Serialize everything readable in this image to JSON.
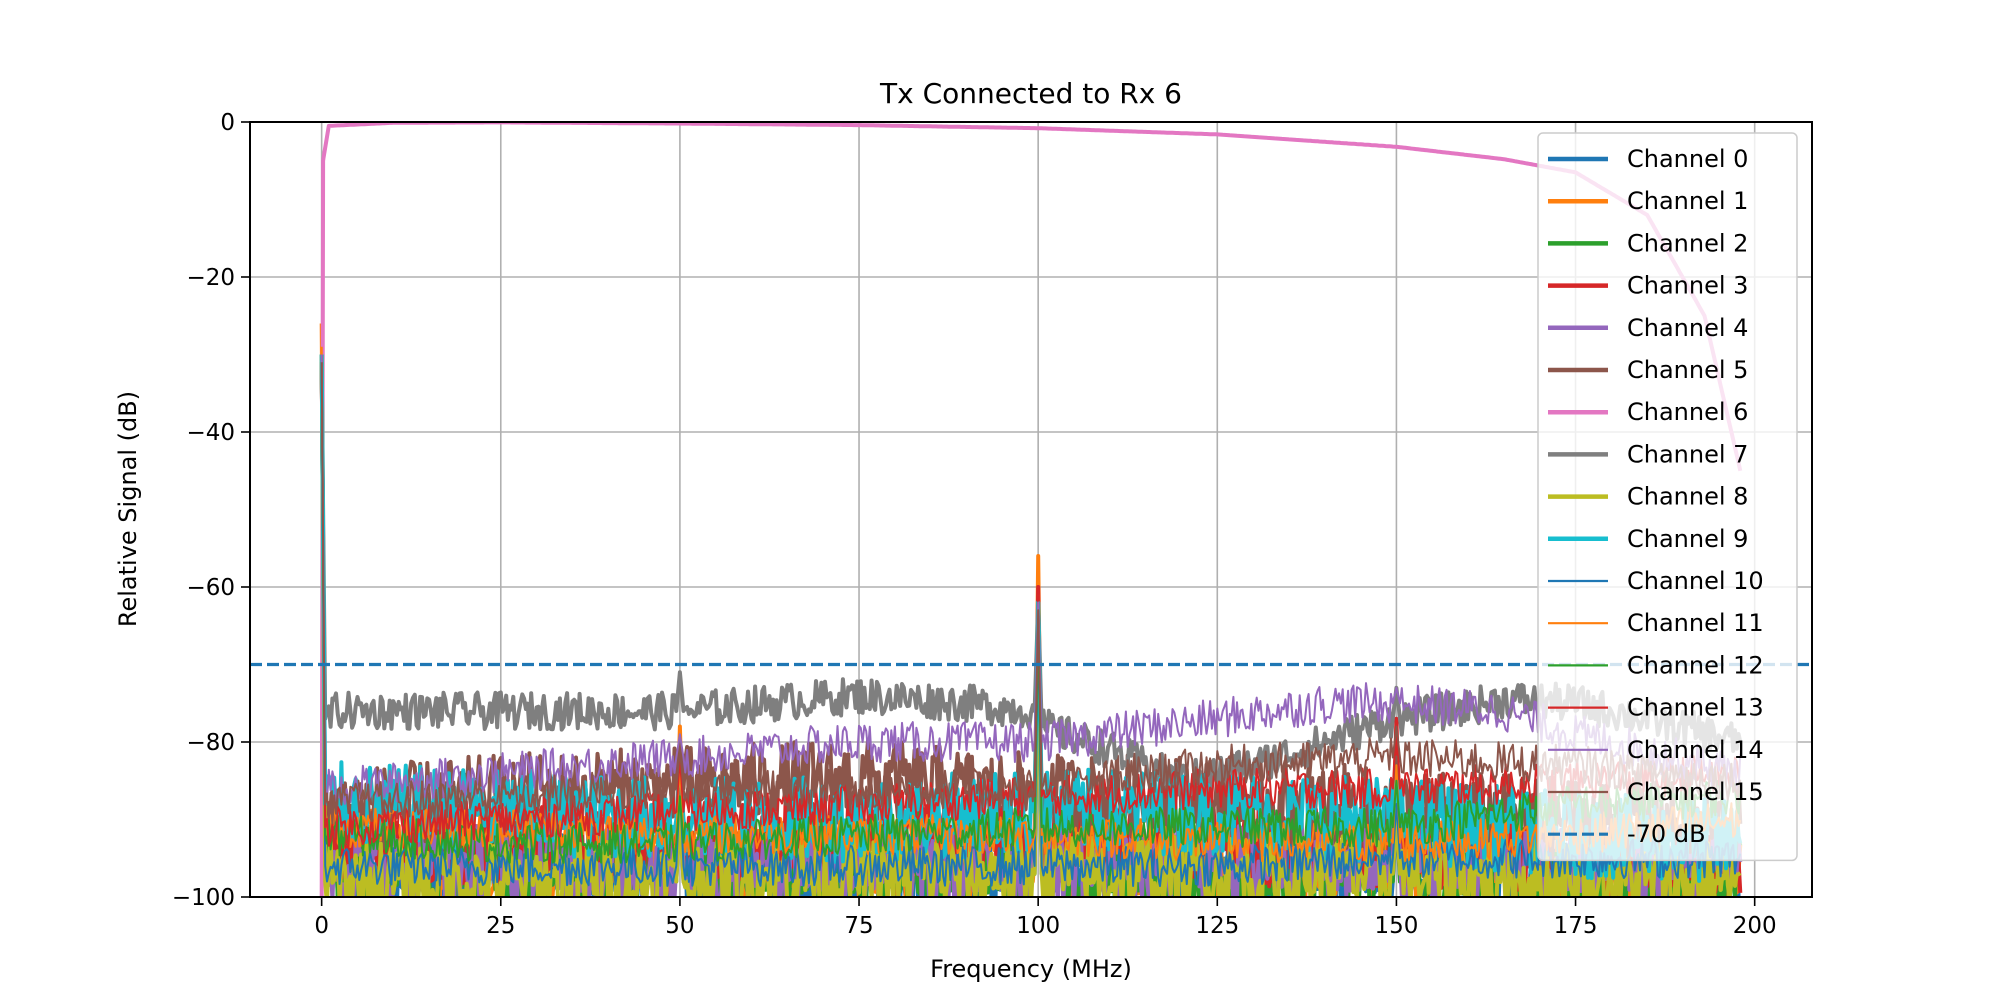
{
  "chart_data": {
    "type": "line",
    "title": "Tx Connected to Rx 6",
    "xlabel": "Frequency (MHz)",
    "ylabel": "Relative Signal (dB)",
    "xlim": [
      -10,
      208
    ],
    "ylim": [
      -100,
      0
    ],
    "xticks": [
      0,
      25,
      50,
      75,
      100,
      125,
      150,
      175,
      200
    ],
    "yticks": [
      0,
      -20,
      -40,
      -60,
      -80,
      -100
    ],
    "xtick_labels": [
      "0",
      "25",
      "50",
      "75",
      "100",
      "125",
      "150",
      "175",
      "200"
    ],
    "ytick_labels": [
      "0",
      "−20",
      "−40",
      "−60",
      "−80",
      "−100"
    ],
    "grid": true,
    "legend_position": "upper right",
    "reference_line": {
      "name": "-70 dB",
      "y": -70,
      "color": "#1f77b4",
      "style": "dashed"
    },
    "spur_frequencies": [
      0,
      50,
      100,
      150
    ],
    "series": [
      {
        "name": "Channel 0",
        "color": "#1f77b4",
        "width": "thick",
        "points": [
          [
            0,
            -30
          ],
          [
            0.5,
            -97
          ],
          [
            25,
            -97
          ],
          [
            49.5,
            -98
          ],
          [
            50,
            -88
          ],
          [
            50.5,
            -98
          ],
          [
            75,
            -97
          ],
          [
            99.5,
            -97
          ],
          [
            100,
            -62
          ],
          [
            100.5,
            -97
          ],
          [
            125,
            -98
          ],
          [
            149.5,
            -98
          ],
          [
            150,
            -90
          ],
          [
            150.5,
            -98
          ],
          [
            175,
            -98
          ],
          [
            198,
            -97
          ]
        ]
      },
      {
        "name": "Channel 1",
        "color": "#ff7f0e",
        "width": "thick",
        "points": [
          [
            0,
            -26
          ],
          [
            0.5,
            -94
          ],
          [
            25,
            -95
          ],
          [
            49.5,
            -95
          ],
          [
            50,
            -78
          ],
          [
            50.5,
            -95
          ],
          [
            75,
            -95
          ],
          [
            99.5,
            -95
          ],
          [
            100,
            -56
          ],
          [
            100.5,
            -95
          ],
          [
            125,
            -96
          ],
          [
            149.5,
            -96
          ],
          [
            150,
            -78
          ],
          [
            150.5,
            -96
          ],
          [
            175,
            -97
          ],
          [
            198,
            -96
          ]
        ]
      },
      {
        "name": "Channel 2",
        "color": "#2ca02c",
        "width": "thick",
        "points": [
          [
            0,
            -30
          ],
          [
            0.5,
            -96
          ],
          [
            25,
            -97
          ],
          [
            49.5,
            -97
          ],
          [
            50,
            -85
          ],
          [
            50.5,
            -97
          ],
          [
            75,
            -97
          ],
          [
            99.5,
            -97
          ],
          [
            100,
            -63
          ],
          [
            100.5,
            -97
          ],
          [
            125,
            -98
          ],
          [
            149.5,
            -98
          ],
          [
            150,
            -85
          ],
          [
            150.5,
            -98
          ],
          [
            175,
            -98
          ],
          [
            198,
            -98
          ]
        ]
      },
      {
        "name": "Channel 3",
        "color": "#d62728",
        "width": "thick",
        "points": [
          [
            0,
            -31
          ],
          [
            0.5,
            -93
          ],
          [
            25,
            -93
          ],
          [
            49.5,
            -93
          ],
          [
            50,
            -84
          ],
          [
            50.5,
            -93
          ],
          [
            75,
            -92
          ],
          [
            99.5,
            -92
          ],
          [
            100,
            -60
          ],
          [
            100.5,
            -92
          ],
          [
            125,
            -93
          ],
          [
            149.5,
            -94
          ],
          [
            150,
            -77
          ],
          [
            150.5,
            -94
          ],
          [
            175,
            -94
          ],
          [
            198,
            -95
          ]
        ]
      },
      {
        "name": "Channel 4",
        "color": "#9467bd",
        "width": "thick",
        "points": [
          [
            0,
            -30
          ],
          [
            0.5,
            -96
          ],
          [
            25,
            -96
          ],
          [
            49.5,
            -96
          ],
          [
            50,
            -80
          ],
          [
            50.5,
            -96
          ],
          [
            75,
            -96
          ],
          [
            99.5,
            -96
          ],
          [
            100,
            -62
          ],
          [
            100.5,
            -96
          ],
          [
            125,
            -96
          ],
          [
            149.5,
            -95
          ],
          [
            150,
            -84
          ],
          [
            150.5,
            -95
          ],
          [
            175,
            -96
          ],
          [
            198,
            -96
          ]
        ]
      },
      {
        "name": "Channel 5",
        "color": "#8c564b",
        "width": "thick",
        "points": [
          [
            0,
            -31
          ],
          [
            0.5,
            -89
          ],
          [
            25,
            -87
          ],
          [
            49.5,
            -86
          ],
          [
            50,
            -80
          ],
          [
            50.5,
            -86
          ],
          [
            75,
            -85
          ],
          [
            99.5,
            -87
          ],
          [
            100,
            -63
          ],
          [
            100.5,
            -87
          ],
          [
            125,
            -87
          ],
          [
            149.5,
            -89
          ],
          [
            150,
            -82
          ],
          [
            150.5,
            -89
          ],
          [
            175,
            -90
          ],
          [
            198,
            -91
          ]
        ]
      },
      {
        "name": "Channel 6",
        "color": "#e377c2",
        "width": "thick",
        "points": [
          [
            0,
            -100
          ],
          [
            0.2,
            -5
          ],
          [
            1,
            -0.5
          ],
          [
            10,
            -0.1
          ],
          [
            25,
            -0.05
          ],
          [
            50,
            -0.2
          ],
          [
            75,
            -0.4
          ],
          [
            100,
            -0.8
          ],
          [
            125,
            -1.6
          ],
          [
            150,
            -3.2
          ],
          [
            165,
            -4.8
          ],
          [
            175,
            -6.5
          ],
          [
            185,
            -12
          ],
          [
            193,
            -25
          ],
          [
            198,
            -45
          ]
        ]
      },
      {
        "name": "Channel 7",
        "color": "#7f7f7f",
        "width": "thick",
        "points": [
          [
            0,
            -31
          ],
          [
            0.5,
            -77
          ],
          [
            2,
            -76
          ],
          [
            25,
            -76
          ],
          [
            49.5,
            -76
          ],
          [
            50,
            -71
          ],
          [
            50.5,
            -76
          ],
          [
            62,
            -75
          ],
          [
            75,
            -74
          ],
          [
            90,
            -75
          ],
          [
            99.5,
            -76
          ],
          [
            100,
            -62
          ],
          [
            100.5,
            -78
          ],
          [
            110,
            -81
          ],
          [
            120,
            -85
          ],
          [
            130,
            -83
          ],
          [
            140,
            -80
          ],
          [
            149.5,
            -77
          ],
          [
            150,
            -73
          ],
          [
            150.5,
            -77
          ],
          [
            160,
            -75.5
          ],
          [
            165,
            -74.5
          ],
          [
            175,
            -75
          ],
          [
            185,
            -77
          ],
          [
            198,
            -80
          ]
        ]
      },
      {
        "name": "Channel 8",
        "color": "#bcbd22",
        "width": "thick",
        "points": [
          [
            0,
            -30
          ],
          [
            0.5,
            -98
          ],
          [
            25,
            -98
          ],
          [
            49.5,
            -98
          ],
          [
            50,
            -89
          ],
          [
            50.5,
            -98
          ],
          [
            75,
            -97
          ],
          [
            99.5,
            -97
          ],
          [
            100,
            -63
          ],
          [
            100.5,
            -97
          ],
          [
            125,
            -97
          ],
          [
            149.5,
            -97
          ],
          [
            150,
            -90
          ],
          [
            150.5,
            -97
          ],
          [
            175,
            -98
          ],
          [
            198,
            -98
          ]
        ]
      },
      {
        "name": "Channel 9",
        "color": "#17becf",
        "width": "thick",
        "points": [
          [
            0,
            -30
          ],
          [
            0.5,
            -88
          ],
          [
            25,
            -89
          ],
          [
            49.5,
            -90
          ],
          [
            50,
            -83
          ],
          [
            50.5,
            -90
          ],
          [
            75,
            -90
          ],
          [
            99.5,
            -89
          ],
          [
            100,
            -62
          ],
          [
            100.5,
            -89
          ],
          [
            125,
            -89
          ],
          [
            149.5,
            -90
          ],
          [
            150,
            -85
          ],
          [
            150.5,
            -90
          ],
          [
            175,
            -92
          ],
          [
            198,
            -93
          ]
        ]
      },
      {
        "name": "Channel 10",
        "color": "#1f77b4",
        "width": "thin",
        "points": [
          [
            0,
            -31
          ],
          [
            0.5,
            -96
          ],
          [
            25,
            -96
          ],
          [
            49.5,
            -96
          ],
          [
            50,
            -86
          ],
          [
            50.5,
            -96
          ],
          [
            75,
            -96
          ],
          [
            99.5,
            -96
          ],
          [
            100,
            -64
          ],
          [
            100.5,
            -96
          ],
          [
            125,
            -96
          ],
          [
            149.5,
            -95
          ],
          [
            150,
            -88
          ],
          [
            150.5,
            -95
          ],
          [
            175,
            -95
          ],
          [
            198,
            -95
          ]
        ]
      },
      {
        "name": "Channel 11",
        "color": "#ff7f0e",
        "width": "thin",
        "points": [
          [
            0,
            -29
          ],
          [
            0.5,
            -91
          ],
          [
            25,
            -91
          ],
          [
            49.5,
            -92
          ],
          [
            50,
            -83
          ],
          [
            50.5,
            -92
          ],
          [
            75,
            -92
          ],
          [
            99.5,
            -92
          ],
          [
            100,
            -61
          ],
          [
            100.5,
            -92
          ],
          [
            125,
            -93
          ],
          [
            149.5,
            -93
          ],
          [
            150,
            -83
          ],
          [
            150.5,
            -93
          ],
          [
            175,
            -92
          ],
          [
            198,
            -90
          ]
        ]
      },
      {
        "name": "Channel 12",
        "color": "#2ca02c",
        "width": "thin",
        "points": [
          [
            0,
            -31
          ],
          [
            0.5,
            -92
          ],
          [
            25,
            -93
          ],
          [
            49.5,
            -93
          ],
          [
            50,
            -87
          ],
          [
            50.5,
            -93
          ],
          [
            75,
            -92
          ],
          [
            99.5,
            -91
          ],
          [
            100,
            -64
          ],
          [
            100.5,
            -91
          ],
          [
            125,
            -91
          ],
          [
            149.5,
            -91
          ],
          [
            150,
            -85
          ],
          [
            150.5,
            -91
          ],
          [
            175,
            -88
          ],
          [
            198,
            -87
          ]
        ]
      },
      {
        "name": "Channel 13",
        "color": "#d62728",
        "width": "thin",
        "points": [
          [
            0,
            -30
          ],
          [
            0.5,
            -91
          ],
          [
            25,
            -90
          ],
          [
            49.5,
            -89
          ],
          [
            50,
            -82
          ],
          [
            50.5,
            -89
          ],
          [
            75,
            -88
          ],
          [
            99.5,
            -87
          ],
          [
            100,
            -60
          ],
          [
            100.5,
            -87
          ],
          [
            125,
            -86
          ],
          [
            149.5,
            -86
          ],
          [
            150,
            -77
          ],
          [
            150.5,
            -86
          ],
          [
            175,
            -85
          ],
          [
            198,
            -84
          ]
        ]
      },
      {
        "name": "Channel 14",
        "color": "#9467bd",
        "width": "thin",
        "points": [
          [
            0,
            -30
          ],
          [
            0.5,
            -86
          ],
          [
            25,
            -84
          ],
          [
            49.5,
            -82
          ],
          [
            50,
            -79
          ],
          [
            50.5,
            -82
          ],
          [
            75,
            -80
          ],
          [
            99.5,
            -80
          ],
          [
            100,
            -62
          ],
          [
            100.5,
            -80
          ],
          [
            125,
            -77
          ],
          [
            140,
            -75
          ],
          [
            149.5,
            -75
          ],
          [
            150,
            -73
          ],
          [
            150.5,
            -75
          ],
          [
            165,
            -76
          ],
          [
            175,
            -79
          ],
          [
            198,
            -84
          ]
        ]
      },
      {
        "name": "Channel 15",
        "color": "#8c564b",
        "width": "thin",
        "points": [
          [
            0,
            -31
          ],
          [
            0.5,
            -88
          ],
          [
            25,
            -87
          ],
          [
            49.5,
            -86
          ],
          [
            50,
            -81
          ],
          [
            50.5,
            -86
          ],
          [
            75,
            -86
          ],
          [
            99.5,
            -86
          ],
          [
            100,
            -63
          ],
          [
            100.5,
            -86
          ],
          [
            125,
            -83
          ],
          [
            149.5,
            -82
          ],
          [
            150,
            -78
          ],
          [
            150.5,
            -82
          ],
          [
            175,
            -83
          ],
          [
            198,
            -85
          ]
        ]
      }
    ]
  }
}
